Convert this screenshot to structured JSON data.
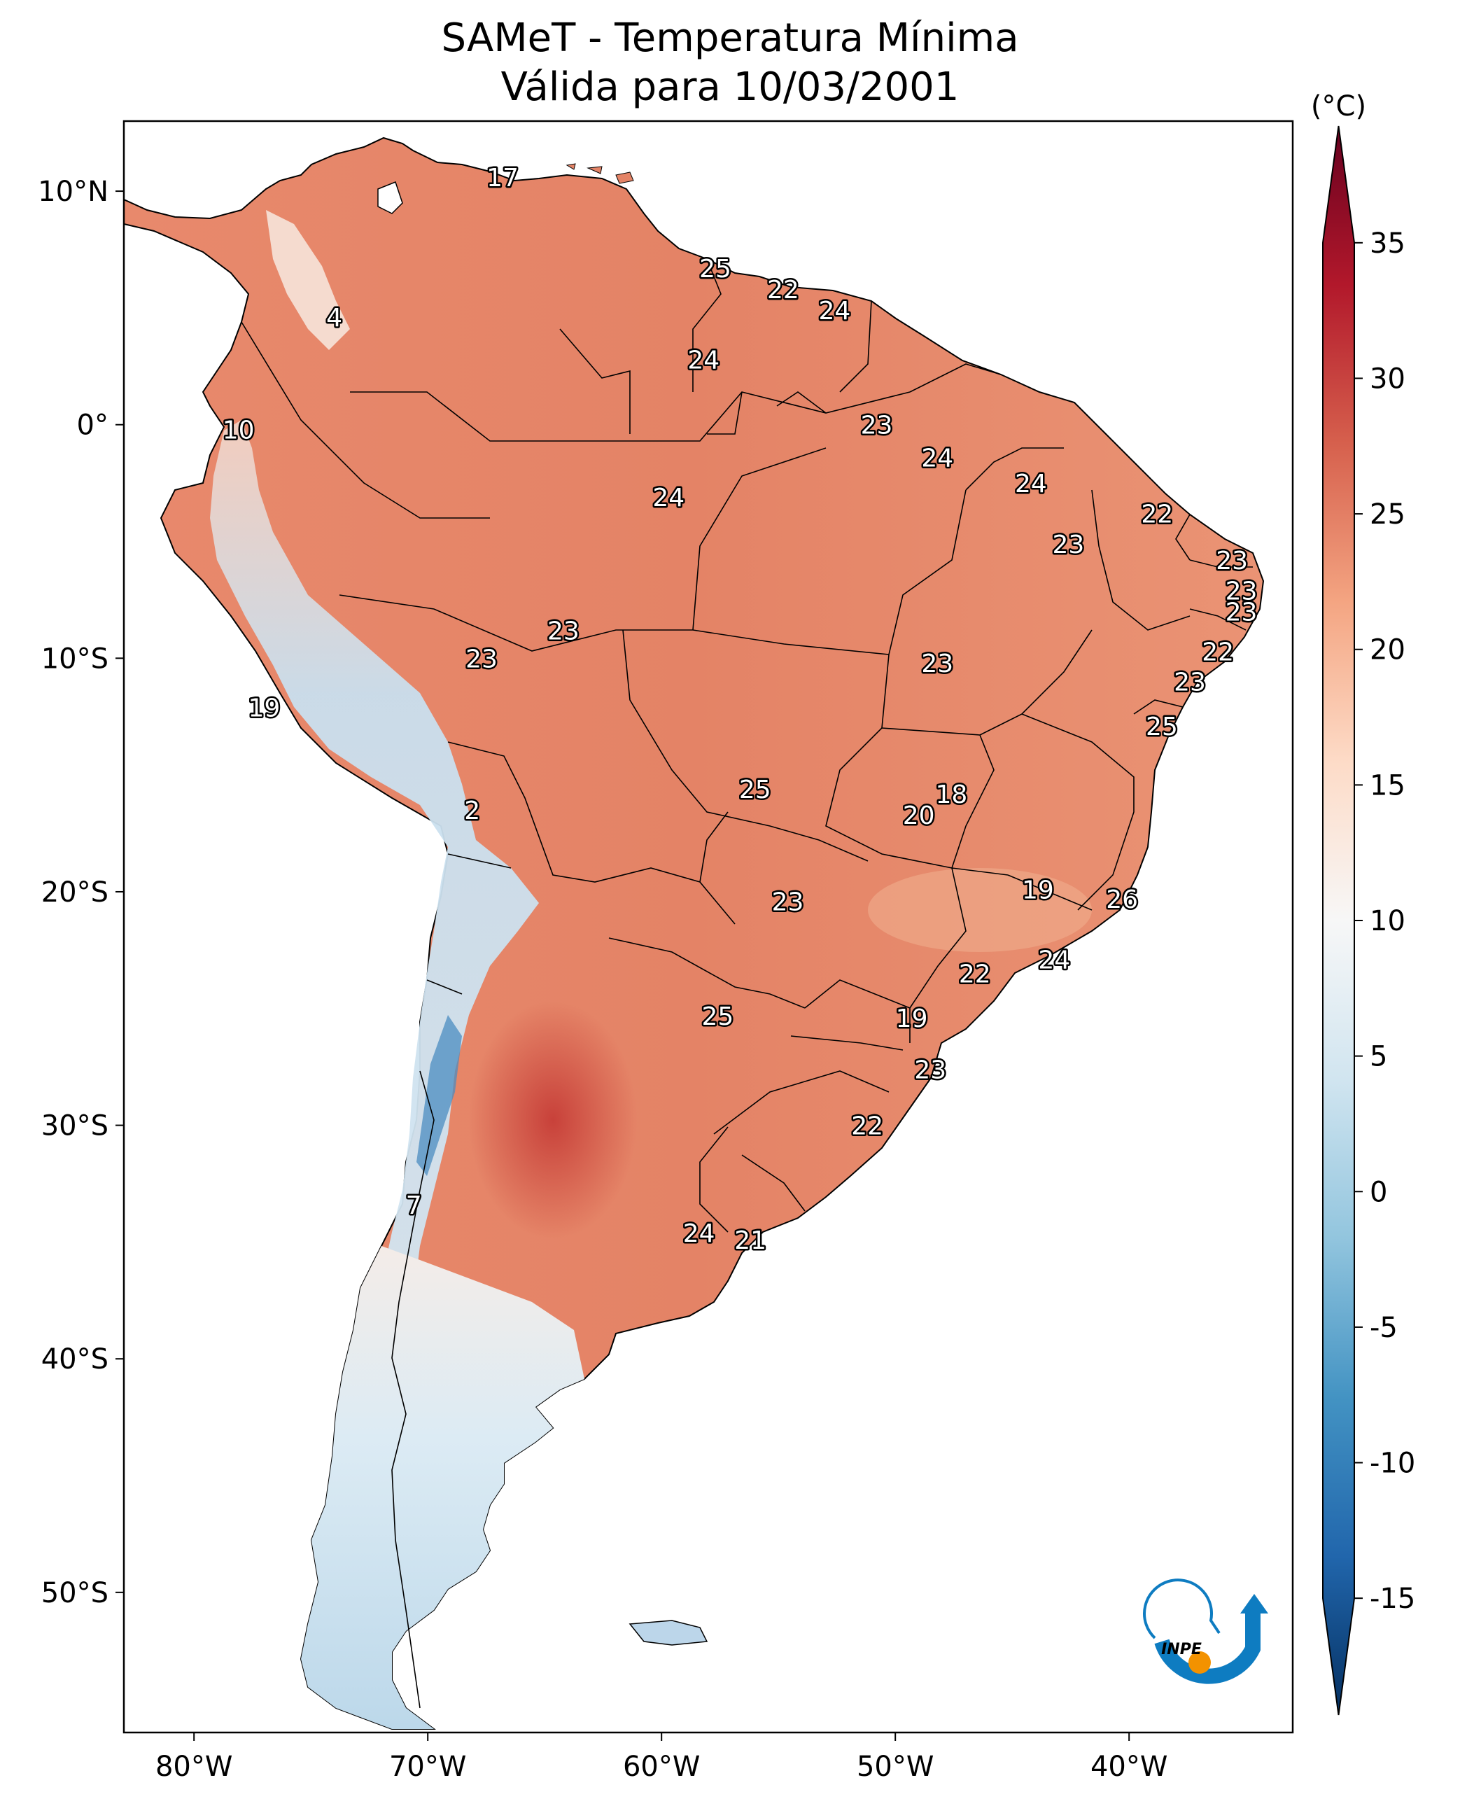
{
  "title": {
    "line1": "SAMeT - Temperatura Mínima",
    "line2": "Válida para 10/03/2001"
  },
  "map": {
    "extent": {
      "lon": [
        -83,
        -33
      ],
      "lat": [
        -56,
        13
      ]
    },
    "lon_ticks": [
      {
        "value": -80,
        "label": "80°W"
      },
      {
        "value": -70,
        "label": "70°W"
      },
      {
        "value": -60,
        "label": "60°W"
      },
      {
        "value": -50,
        "label": "50°W"
      },
      {
        "value": -40,
        "label": "40°W"
      }
    ],
    "lat_ticks": [
      {
        "value": 10,
        "label": "10°N"
      },
      {
        "value": 0,
        "label": "0°"
      },
      {
        "value": -10,
        "label": "10°S"
      },
      {
        "value": -20,
        "label": "20°S"
      },
      {
        "value": -30,
        "label": "30°S"
      },
      {
        "value": -40,
        "label": "40°S"
      },
      {
        "value": -50,
        "label": "50°S"
      }
    ],
    "station_labels": [
      {
        "lon": -66.8,
        "lat": 10.6,
        "value": "17"
      },
      {
        "lon": -74.0,
        "lat": 4.6,
        "value": "4"
      },
      {
        "lon": -57.7,
        "lat": 6.7,
        "value": "25"
      },
      {
        "lon": -54.8,
        "lat": 5.8,
        "value": "22"
      },
      {
        "lon": -52.6,
        "lat": 4.9,
        "value": "24"
      },
      {
        "lon": -58.2,
        "lat": 2.8,
        "value": "24"
      },
      {
        "lon": -78.1,
        "lat": -0.2,
        "value": "10"
      },
      {
        "lon": -50.8,
        "lat": 0.0,
        "value": "23"
      },
      {
        "lon": -48.2,
        "lat": -1.4,
        "value": "24"
      },
      {
        "lon": -44.2,
        "lat": -2.5,
        "value": "24"
      },
      {
        "lon": -59.7,
        "lat": -3.1,
        "value": "24"
      },
      {
        "lon": -38.8,
        "lat": -3.8,
        "value": "22"
      },
      {
        "lon": -42.6,
        "lat": -5.1,
        "value": "23"
      },
      {
        "lon": -35.6,
        "lat": -5.8,
        "value": "23"
      },
      {
        "lon": -35.2,
        "lat": -7.1,
        "value": "23"
      },
      {
        "lon": -35.2,
        "lat": -8.0,
        "value": "23"
      },
      {
        "lon": -64.2,
        "lat": -8.8,
        "value": "23"
      },
      {
        "lon": -67.7,
        "lat": -10.0,
        "value": "23"
      },
      {
        "lon": -48.2,
        "lat": -10.2,
        "value": "23"
      },
      {
        "lon": -36.2,
        "lat": -9.7,
        "value": "22"
      },
      {
        "lon": -37.4,
        "lat": -11.0,
        "value": "23"
      },
      {
        "lon": -77.0,
        "lat": -12.1,
        "value": "19"
      },
      {
        "lon": -38.6,
        "lat": -12.9,
        "value": "25"
      },
      {
        "lon": -56.0,
        "lat": -15.6,
        "value": "25"
      },
      {
        "lon": -47.6,
        "lat": -15.8,
        "value": "18"
      },
      {
        "lon": -49.0,
        "lat": -16.7,
        "value": "20"
      },
      {
        "lon": -68.1,
        "lat": -16.5,
        "value": "2"
      },
      {
        "lon": -43.9,
        "lat": -19.9,
        "value": "19"
      },
      {
        "lon": -40.3,
        "lat": -20.3,
        "value": "26"
      },
      {
        "lon": -54.6,
        "lat": -20.4,
        "value": "23"
      },
      {
        "lon": -43.2,
        "lat": -22.9,
        "value": "24"
      },
      {
        "lon": -46.6,
        "lat": -23.5,
        "value": "22"
      },
      {
        "lon": -57.6,
        "lat": -25.3,
        "value": "25"
      },
      {
        "lon": -49.3,
        "lat": -25.4,
        "value": "19"
      },
      {
        "lon": -48.5,
        "lat": -27.6,
        "value": "23"
      },
      {
        "lon": -51.2,
        "lat": -30.0,
        "value": "22"
      },
      {
        "lon": -70.6,
        "lat": -33.4,
        "value": "7"
      },
      {
        "lon": -58.4,
        "lat": -34.6,
        "value": "24"
      },
      {
        "lon": -56.2,
        "lat": -34.9,
        "value": "21"
      }
    ]
  },
  "colorbar": {
    "unit": "(°C)",
    "range": [
      -17.5,
      37.5
    ],
    "ticks": [
      {
        "value": 35,
        "label": "35"
      },
      {
        "value": 30,
        "label": "30"
      },
      {
        "value": 25,
        "label": "25"
      },
      {
        "value": 20,
        "label": "20"
      },
      {
        "value": 15,
        "label": "15"
      },
      {
        "value": 10,
        "label": "10"
      },
      {
        "value": 5,
        "label": "5"
      },
      {
        "value": 0,
        "label": "0"
      },
      {
        "value": -5,
        "label": "-5"
      },
      {
        "value": -10,
        "label": "-10"
      },
      {
        "value": -15,
        "label": "-15"
      }
    ],
    "colors": [
      "#053061",
      "#2166ac",
      "#4393c3",
      "#92c5de",
      "#d1e5f0",
      "#f7f7f7",
      "#fddbc7",
      "#f4a582",
      "#d6604d",
      "#b2182b",
      "#67001f"
    ]
  },
  "logo": {
    "text": "INPE",
    "arc_color": "#0e7cc1",
    "dot_color": "#f39200"
  }
}
